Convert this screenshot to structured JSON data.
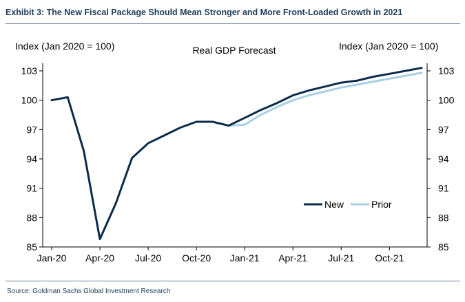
{
  "exhibit_title": "Exhibit 3: The New Fiscal Package Should Mean Stronger and More Front-Loaded Growth in 2021",
  "source": "Source: Goldman Sachs Global Investment Research",
  "colors": {
    "new": "#0b2b4a",
    "prior": "#a9cfe4",
    "axis": "#000000",
    "title": "#1b3a57"
  },
  "chart_data": {
    "type": "line",
    "title": "Real GDP Forecast",
    "ylabel_left": "Index (Jan 2020 = 100)",
    "ylabel_right": "Index (Jan 2020 = 100)",
    "ylim": [
      85,
      103
    ],
    "yticks": [
      85,
      88,
      91,
      94,
      97,
      100,
      103
    ],
    "xlim": [
      0,
      24
    ],
    "xticks": [
      {
        "x": 0,
        "label": "Jan-20"
      },
      {
        "x": 3,
        "label": "Apr-20"
      },
      {
        "x": 6,
        "label": "Jul-20"
      },
      {
        "x": 9,
        "label": "Oct-20"
      },
      {
        "x": 12,
        "label": "Jan-21"
      },
      {
        "x": 15,
        "label": "Apr-21"
      },
      {
        "x": 18,
        "label": "Jul-21"
      },
      {
        "x": 21,
        "label": "Oct-21"
      }
    ],
    "legend": {
      "position": "bottom-right",
      "entries": [
        "New",
        "Prior"
      ]
    },
    "series": [
      {
        "name": "New",
        "x": [
          0,
          1,
          2,
          3,
          4,
          5,
          6,
          7,
          8,
          9,
          10,
          11,
          12,
          13,
          14,
          15,
          16,
          17,
          18,
          19,
          20,
          21,
          22,
          23
        ],
        "values": [
          100.0,
          100.3,
          94.8,
          85.8,
          89.5,
          94.1,
          95.6,
          96.4,
          97.2,
          97.8,
          97.8,
          97.4,
          98.2,
          99.0,
          99.7,
          100.5,
          101.0,
          101.4,
          101.8,
          102.0,
          102.4,
          102.7,
          103.0,
          103.3
        ]
      },
      {
        "name": "Prior",
        "x": [
          11,
          12,
          13,
          14,
          15,
          16,
          17,
          18,
          19,
          20,
          21,
          22,
          23
        ],
        "values": [
          97.4,
          97.5,
          98.5,
          99.3,
          100.0,
          100.5,
          100.9,
          101.3,
          101.6,
          101.9,
          102.2,
          102.5,
          102.8
        ]
      }
    ]
  }
}
